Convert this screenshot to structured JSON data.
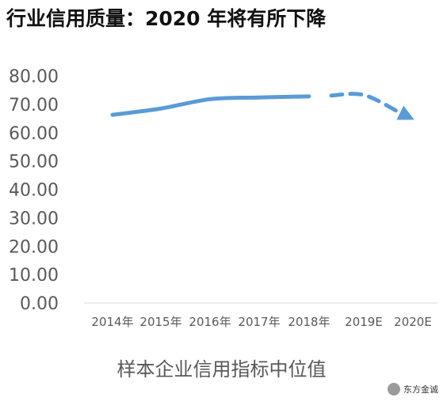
{
  "title": "行业信用质量：2020 年将有所下降",
  "chart_data": {
    "type": "line",
    "categories": [
      "2014年",
      "2015年",
      "2016年",
      "2017年",
      "2018年",
      "2019E",
      "2020E"
    ],
    "series": [
      {
        "values": [
          66.3,
          68.5,
          71.8,
          72.4,
          72.8,
          73.3,
          64.8
        ]
      }
    ],
    "actual_count": 5,
    "forecast_style": "dashed with arrow",
    "y_ticks": [
      "0.00",
      "10.00",
      "20.00",
      "30.00",
      "40.00",
      "50.00",
      "60.00",
      "70.00",
      "80.00"
    ],
    "ylim": [
      0,
      80
    ],
    "xlabel": "样本企业信用指标中位值",
    "ylabel": "",
    "grid": false,
    "legend": "none",
    "line_color": "#5B9BD5"
  },
  "watermark": {
    "text": "东方金诚",
    "icon": "wechat-icon"
  }
}
